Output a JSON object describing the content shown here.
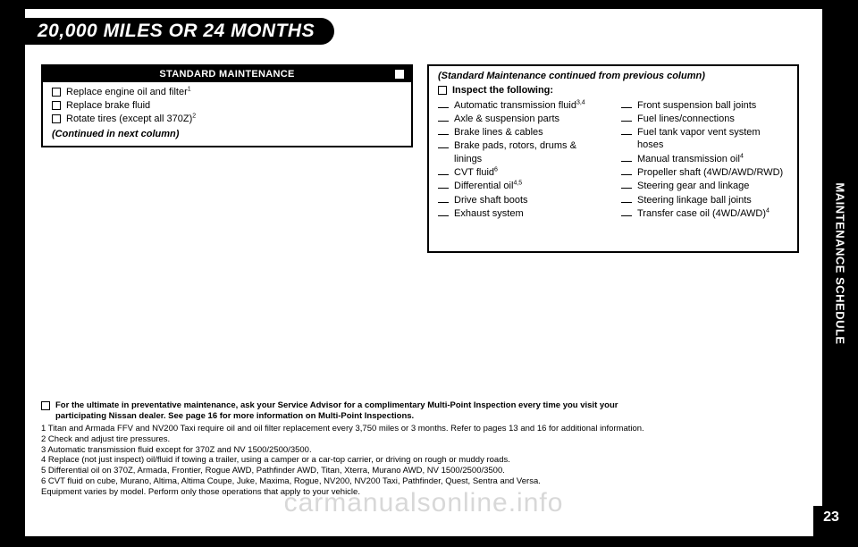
{
  "header": {
    "title": "20,000 MILES OR 24 MONTHS"
  },
  "side_tab": "MAINTENANCE SCHEDULE",
  "page_number": "23",
  "watermark": "carmanualsonline.info",
  "left_box": {
    "header": "STANDARD MAINTENANCE",
    "items": [
      {
        "text": "Replace engine oil and filter",
        "sup": "1"
      },
      {
        "text": "Replace brake fluid",
        "sup": ""
      },
      {
        "text": "Rotate tires (except all 370Z)",
        "sup": "2"
      }
    ],
    "continued": "(Continued in next column)"
  },
  "right_box": {
    "continued_from": "(Standard Maintenance continued from previous column)",
    "inspect_label": "Inspect the following:",
    "col1": [
      {
        "text": "Automatic transmission fluid",
        "sup": "3,4"
      },
      {
        "text": "Axle & suspension parts",
        "sup": ""
      },
      {
        "text": "Brake lines & cables",
        "sup": ""
      },
      {
        "text": "Brake pads, rotors, drums & linings",
        "sup": ""
      },
      {
        "text": "CVT fluid",
        "sup": "6"
      },
      {
        "text": "Differential oil",
        "sup": "4,5"
      },
      {
        "text": "Drive shaft boots",
        "sup": ""
      },
      {
        "text": "Exhaust system",
        "sup": ""
      }
    ],
    "col2": [
      {
        "text": "Front suspension ball joints",
        "sup": ""
      },
      {
        "text": "Fuel lines/connections",
        "sup": ""
      },
      {
        "text": "Fuel tank vapor vent system hoses",
        "sup": ""
      },
      {
        "text": "Manual transmission oil",
        "sup": "4"
      },
      {
        "text": "Propeller shaft (4WD/AWD/RWD)",
        "sup": ""
      },
      {
        "text": "Steering gear and linkage",
        "sup": ""
      },
      {
        "text": "Steering linkage ball joints",
        "sup": ""
      },
      {
        "text": "Transfer case oil (4WD/AWD)",
        "sup": "4"
      }
    ]
  },
  "footnotes": {
    "lead1": "For the ultimate in preventative maintenance, ask your Service Advisor for a complimentary Multi-Point Inspection every time you visit your",
    "lead2": "participating Nissan dealer. See page 16 for more information on Multi-Point Inspections.",
    "lines": [
      "1 Titan and Armada FFV and NV200 Taxi require oil and oil filter replacement every 3,750 miles or 3 months. Refer to pages 13 and 16 for additional information.",
      "2 Check and adjust tire pressures.",
      "3 Automatic transmission fluid except for 370Z and NV 1500/2500/3500.",
      "4 Replace (not just inspect) oil/fluid if towing a trailer, using a camper or a car-top carrier, or driving on rough or muddy roads.",
      "5 Differential oil on 370Z, Armada, Frontier, Rogue AWD, Pathfinder AWD, Titan, Xterra, Murano AWD, NV 1500/2500/3500.",
      "6 CVT fluid on cube, Murano, Altima, Altima Coupe, Juke, Maxima, Rogue, NV200, NV200 Taxi, Pathfinder, Quest, Sentra and Versa.",
      "Equipment varies by model. Perform only those operations that apply to your vehicle."
    ]
  }
}
